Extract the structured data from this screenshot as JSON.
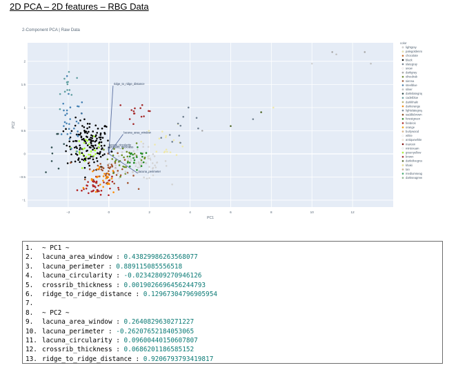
{
  "page": {
    "title": "2D PCA – 2D features – RBG Data"
  },
  "chart_data": {
    "type": "scatter",
    "title": "2-Component PCA | Raw Data",
    "xlabel": "PC1",
    "ylabel": "PC2",
    "xlim": [
      -4,
      14
    ],
    "ylim": [
      -1.15,
      2.4
    ],
    "xticks": [
      "−2",
      "0",
      "2",
      "4",
      "6",
      "8",
      "10",
      "12"
    ],
    "xtick_values": [
      -2,
      0,
      2,
      4,
      6,
      8,
      10,
      12
    ],
    "yticks": [
      "−1",
      "−0.5",
      "0",
      "0.5",
      "1",
      "1.5",
      "2"
    ],
    "ytick_values": [
      -1,
      -0.5,
      0,
      0.5,
      1,
      1.5,
      2
    ],
    "grid": true,
    "legend_position": "right",
    "legend_title": "color",
    "legend": [
      {
        "name": "lightgray",
        "color": "#d3d3d3"
      },
      {
        "name": "palegoldenrod",
        "color": "#eee8aa"
      },
      {
        "name": "chocolate",
        "color": "#d2691e"
      },
      {
        "name": "black",
        "color": "#000000"
      },
      {
        "name": "slategray",
        "color": "#708090"
      },
      {
        "name": "snow",
        "color": "#fffafa"
      },
      {
        "name": "darkgray",
        "color": "#a9a9a9"
      },
      {
        "name": "olivedrab",
        "color": "#6b8e23"
      },
      {
        "name": "sienna",
        "color": "#a0522d"
      },
      {
        "name": "steelblue",
        "color": "#4682b4"
      },
      {
        "name": "silver",
        "color": "#c0c0c0"
      },
      {
        "name": "darkslategray",
        "color": "#2f4f4f"
      },
      {
        "name": "cadetblue",
        "color": "#5f9ea0"
      },
      {
        "name": "darkkhaki",
        "color": "#bdb76b"
      },
      {
        "name": "darkorange",
        "color": "#ff8c00"
      },
      {
        "name": "lightslategray",
        "color": "#778899"
      },
      {
        "name": "saddlebrown",
        "color": "#8b4513"
      },
      {
        "name": "forestgreen",
        "color": "#228b22"
      },
      {
        "name": "firebrick",
        "color": "#b22222"
      },
      {
        "name": "orange",
        "color": "#ffa500"
      },
      {
        "name": "burlywood",
        "color": "#deb887"
      },
      {
        "name": "white",
        "color": "#ffffff"
      },
      {
        "name": "antiquewhite",
        "color": "#faebd7"
      },
      {
        "name": "maroon",
        "color": "#800000"
      },
      {
        "name": "mintcream",
        "color": "#f5fffa"
      },
      {
        "name": "greenyellow",
        "color": "#adff2f"
      },
      {
        "name": "brown",
        "color": "#a52a2a"
      },
      {
        "name": "darkolivegreen",
        "color": "#556b2f"
      },
      {
        "name": "khaki",
        "color": "#f0e68c"
      },
      {
        "name": "tan",
        "color": "#d2b48c"
      },
      {
        "name": "mediumseagreen",
        "color": "#3cb371"
      },
      {
        "name": "darkseagreen",
        "color": "#8fbc8f"
      }
    ],
    "loadings": [
      {
        "name": "ridge_to_ridge_distance",
        "x": 0.1297,
        "y": 0.9207
      },
      {
        "name": "lacuna_area_window",
        "x": 0.4383,
        "y": 0.2641
      },
      {
        "name": "lacuna_perimeter",
        "x": 0.8891,
        "y": -0.2621
      },
      {
        "name": "lacuna_circularity",
        "x": -0.0234,
        "y": 0.096
      },
      {
        "name": "crossrib_thickness",
        "x": 0.0019,
        "y": 0.0686
      }
    ],
    "clusters": [
      {
        "color": "#000000",
        "cx": -1.0,
        "cy": 0.2,
        "sx": 0.9,
        "sy": 0.45,
        "n": 150
      },
      {
        "color": "#a0522d",
        "cx": 0.0,
        "cy": -0.4,
        "sx": 0.9,
        "sy": 0.3,
        "n": 55
      },
      {
        "color": "#b22222",
        "cx": -0.7,
        "cy": -0.7,
        "sx": 0.7,
        "sy": 0.2,
        "n": 35
      },
      {
        "color": "#adff2f",
        "cx": -1.0,
        "cy": 0.1,
        "sx": 0.5,
        "sy": 0.2,
        "n": 25
      },
      {
        "color": "#6b8e23",
        "cx": 0.8,
        "cy": -0.1,
        "sx": 1.0,
        "sy": 0.25,
        "n": 30
      },
      {
        "color": "#d3d3d3",
        "cx": 1.5,
        "cy": -0.2,
        "sx": 1.2,
        "sy": 0.3,
        "n": 70
      },
      {
        "color": "#4682b4",
        "cx": -1.9,
        "cy": 0.6,
        "sx": 0.6,
        "sy": 0.55,
        "n": 30
      },
      {
        "color": "#ff8c00",
        "cx": -0.3,
        "cy": -0.6,
        "sx": 0.6,
        "sy": 0.25,
        "n": 25
      },
      {
        "color": "#228b22",
        "cx": 1.3,
        "cy": -0.15,
        "sx": 0.6,
        "sy": 0.2,
        "n": 20
      },
      {
        "color": "#5f9ea0",
        "cx": -2.0,
        "cy": 1.5,
        "sx": 0.3,
        "sy": 0.35,
        "n": 12
      },
      {
        "color": "#a52a2a",
        "cx": 1.6,
        "cy": 0.9,
        "sx": 0.6,
        "sy": 0.25,
        "n": 14
      },
      {
        "color": "#eee8aa",
        "cx": 2.8,
        "cy": 0.3,
        "sx": 0.9,
        "sy": 0.3,
        "n": 18
      },
      {
        "color": "#708090",
        "cx": 3.6,
        "cy": 0.5,
        "sx": 0.9,
        "sy": 0.35,
        "n": 10
      },
      {
        "color": "#2f4f4f",
        "cx": -2.6,
        "cy": 0.1,
        "sx": 0.5,
        "sy": 0.4,
        "n": 8
      }
    ],
    "outliers": [
      {
        "x": 11.0,
        "y": 2.2,
        "color": "#a9a9a9"
      },
      {
        "x": 11.2,
        "y": 2.15,
        "color": "#c0c0c0"
      },
      {
        "x": 12.6,
        "y": 2.2,
        "color": "#a9a9a9"
      },
      {
        "x": 12.9,
        "y": 1.95,
        "color": "#c0c0c0"
      },
      {
        "x": 10.0,
        "y": 1.95,
        "color": "#d3d3d3"
      },
      {
        "x": 6.0,
        "y": 0.6,
        "color": "#556b2f"
      },
      {
        "x": 7.5,
        "y": 0.9,
        "color": "#556b2f"
      },
      {
        "x": 7.1,
        "y": 0.75,
        "color": "#708090"
      },
      {
        "x": 4.4,
        "y": 0.55,
        "color": "#708090"
      },
      {
        "x": 4.6,
        "y": 0.5,
        "color": "#a9a9a9"
      },
      {
        "x": 8.1,
        "y": 1.0,
        "color": "#eee8aa"
      }
    ]
  },
  "code_box": {
    "lines": [
      {
        "n": "1.",
        "label": "~ PC1 ~",
        "value": ""
      },
      {
        "n": "2.",
        "label": "lacuna_area_window : ",
        "value": "0.43829986263568077"
      },
      {
        "n": "3.",
        "label": "lacuna_perimeter : ",
        "value": "0.889115085556518"
      },
      {
        "n": "4.",
        "label": "lacuna_circularity : ",
        "value": "-0.02342809270946126"
      },
      {
        "n": "5.",
        "label": "crossrib_thickness : ",
        "value": "0.0019026696456244793"
      },
      {
        "n": "6.",
        "label": "ridge_to_ridge_distance : ",
        "value": "0.12967304796905954"
      },
      {
        "n": "7.",
        "label": "",
        "value": ""
      },
      {
        "n": "8.",
        "label": "~ PC2 ~",
        "value": ""
      },
      {
        "n": "9.",
        "label": "lacuna_area_window : ",
        "value": "0.2640829630271227"
      },
      {
        "n": "10.",
        "label": "lacuna_perimeter : ",
        "value": "-0.26207652184053065"
      },
      {
        "n": "11.",
        "label": "lacuna_circularity : ",
        "value": "0.09600440150607807"
      },
      {
        "n": "12.",
        "label": "crossrib_thickness : ",
        "value": "0.0686201186585152"
      },
      {
        "n": "13.",
        "label": "ridge_to_ridge_distance : ",
        "value": "0.9206793793419817"
      }
    ]
  }
}
